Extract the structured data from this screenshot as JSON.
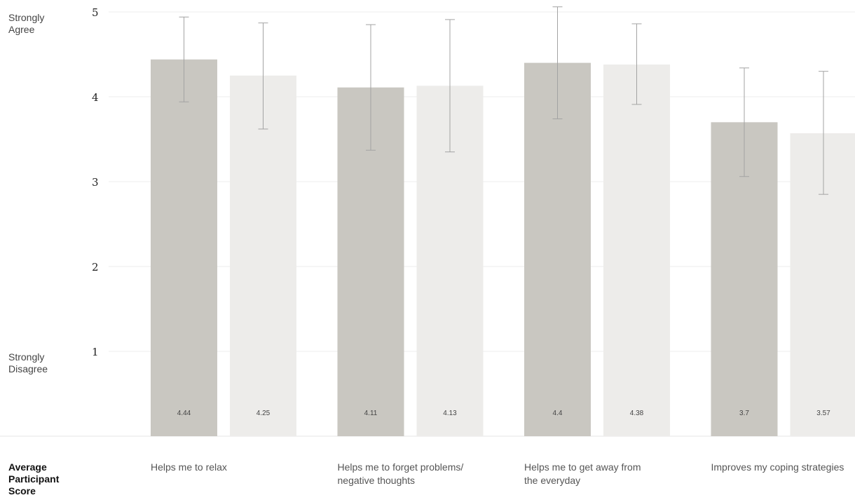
{
  "chart_data": {
    "type": "bar",
    "categories": [
      [
        "Helps me to relax"
      ],
      [
        "Helps me to forget problems/",
        "negative thoughts"
      ],
      [
        "Helps me to get away from",
        "the everyday"
      ],
      [
        "Improves my coping strategies"
      ]
    ],
    "series": [
      {
        "color": "#c9c7c1",
        "values": [
          4.44,
          4.11,
          4.4,
          3.7
        ],
        "error": [
          [
            3.94,
            4.94
          ],
          [
            3.37,
            4.85
          ],
          [
            3.74,
            5.06
          ],
          [
            3.06,
            4.34
          ]
        ]
      },
      {
        "color": "#edecea",
        "values": [
          4.25,
          4.13,
          4.38,
          3.57
        ],
        "error": [
          [
            3.62,
            4.87
          ],
          [
            3.35,
            4.91
          ],
          [
            3.91,
            4.86
          ],
          [
            2.85,
            4.3
          ]
        ]
      }
    ],
    "value_labels": [
      [
        "4.44",
        "4.11",
        "4.4",
        "3.7"
      ],
      [
        "4.25",
        "4.13",
        "4.38",
        "3.57"
      ]
    ],
    "yticks": [
      "1",
      "2",
      "3",
      "4",
      "5"
    ],
    "ylim": [
      0,
      5
    ],
    "y_anchor_labels": {
      "top": [
        "Strongly",
        "Agree"
      ],
      "bottom": [
        "Strongly",
        "Disagree"
      ]
    },
    "xlabel": [
      "Average",
      "Participant",
      "Score"
    ],
    "grid": true
  }
}
